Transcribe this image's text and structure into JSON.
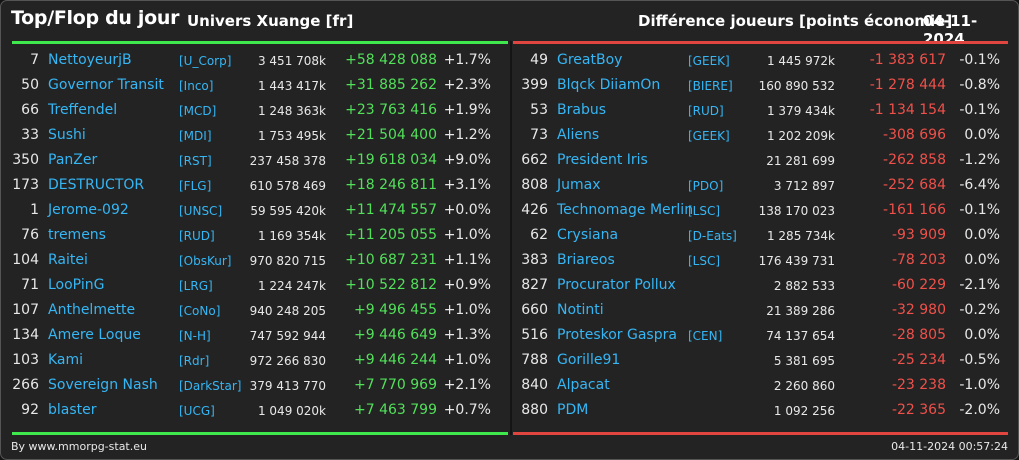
{
  "header": {
    "title": "Top/Flop du jour",
    "universe": "Univers Xuange [fr]",
    "right_title": "Différence joueurs [points économie]",
    "date": "04-11-2024"
  },
  "colors": {
    "positive": "#52e05a",
    "negative": "#f0504a",
    "link": "#35b6f5",
    "top_bar": "#3fe84c",
    "flop_bar": "#e0463f"
  },
  "top": [
    {
      "rank": "7",
      "name": "NettoyeurjB",
      "tag": "[U_Corp]",
      "points": "3 451 708k",
      "diff": "+58 428 088",
      "pct": "+1.7%"
    },
    {
      "rank": "50",
      "name": "Governor Transit",
      "tag": "[Inco]",
      "points": "1 443 417k",
      "diff": "+31 885 262",
      "pct": "+2.3%"
    },
    {
      "rank": "66",
      "name": "Treffendel",
      "tag": "[MCD]",
      "points": "1 248 363k",
      "diff": "+23 763 416",
      "pct": "+1.9%"
    },
    {
      "rank": "33",
      "name": "Sushi",
      "tag": "[MDI]",
      "points": "1 753 495k",
      "diff": "+21 504 400",
      "pct": "+1.2%"
    },
    {
      "rank": "350",
      "name": "PanZer",
      "tag": "[RST]",
      "points": "237 458 378",
      "diff": "+19 618 034",
      "pct": "+9.0%"
    },
    {
      "rank": "173",
      "name": "DESTRUCTOR",
      "tag": "[FLG]",
      "points": "610 578 469",
      "diff": "+18 246 811",
      "pct": "+3.1%"
    },
    {
      "rank": "1",
      "name": "Jerome-092",
      "tag": "[UNSC]",
      "points": "59 595 420k",
      "diff": "+11 474 557",
      "pct": "+0.0%"
    },
    {
      "rank": "76",
      "name": "tremens",
      "tag": "[RUD]",
      "points": "1 169 354k",
      "diff": "+11 205 055",
      "pct": "+1.0%"
    },
    {
      "rank": "104",
      "name": "Raitei",
      "tag": "[ObsKur]",
      "points": "970 820 715",
      "diff": "+10 687 231",
      "pct": "+1.1%"
    },
    {
      "rank": "71",
      "name": "LooPinG",
      "tag": "[LRG]",
      "points": "1 224 247k",
      "diff": "+10 522 812",
      "pct": "+0.9%"
    },
    {
      "rank": "107",
      "name": "Anthelmette",
      "tag": "[CoNo]",
      "points": "940 248 205",
      "diff": "+9 496 455",
      "pct": "+1.0%"
    },
    {
      "rank": "134",
      "name": "Amere Loque",
      "tag": "[N-H]",
      "points": "747 592 944",
      "diff": "+9 446 649",
      "pct": "+1.3%"
    },
    {
      "rank": "103",
      "name": "Kami",
      "tag": "[Rdr]",
      "points": "972 266 830",
      "diff": "+9 446 244",
      "pct": "+1.0%"
    },
    {
      "rank": "266",
      "name": "Sovereign Nash",
      "tag": "[DarkStar]",
      "points": "379 413 770",
      "diff": "+7 770 969",
      "pct": "+2.1%"
    },
    {
      "rank": "92",
      "name": "blaster",
      "tag": "[UCG]",
      "points": "1 049 020k",
      "diff": "+7 463 799",
      "pct": "+0.7%"
    }
  ],
  "flop": [
    {
      "rank": "49",
      "name": "GreatBoy",
      "tag": "[GEEK]",
      "points": "1 445 972k",
      "diff": "-1 383 617",
      "pct": "-0.1%"
    },
    {
      "rank": "399",
      "name": "Blqck DiiamOn",
      "tag": "[BIERE]",
      "points": "160 890 532",
      "diff": "-1 278 444",
      "pct": "-0.8%"
    },
    {
      "rank": "53",
      "name": "Brabus",
      "tag": "[RUD]",
      "points": "1 379 434k",
      "diff": "-1 134 154",
      "pct": "-0.1%"
    },
    {
      "rank": "73",
      "name": "Aliens",
      "tag": "[GEEK]",
      "points": "1 202 209k",
      "diff": "-308 696",
      "pct": "0.0%"
    },
    {
      "rank": "662",
      "name": "President Iris",
      "tag": "",
      "points": "21 281 699",
      "diff": "-262 858",
      "pct": "-1.2%"
    },
    {
      "rank": "808",
      "name": "Jumax",
      "tag": "[PDO]",
      "points": "3 712 897",
      "diff": "-252 684",
      "pct": "-6.4%"
    },
    {
      "rank": "426",
      "name": "Technomage Merlin",
      "tag": "[LSC]",
      "points": "138 170 023",
      "diff": "-161 166",
      "pct": "-0.1%"
    },
    {
      "rank": "62",
      "name": "Crysiana",
      "tag": "[D-Eats]",
      "points": "1 285 734k",
      "diff": "-93 909",
      "pct": "0.0%"
    },
    {
      "rank": "383",
      "name": "Briareos",
      "tag": "[LSC]",
      "points": "176 439 731",
      "diff": "-78 203",
      "pct": "0.0%"
    },
    {
      "rank": "827",
      "name": "Procurator Pollux",
      "tag": "",
      "points": "2 882 533",
      "diff": "-60 229",
      "pct": "-2.1%"
    },
    {
      "rank": "660",
      "name": "Notinti",
      "tag": "",
      "points": "21 389 286",
      "diff": "-32 980",
      "pct": "-0.2%"
    },
    {
      "rank": "516",
      "name": "Proteskor Gaspra",
      "tag": "[CEN]",
      "points": "74 137 654",
      "diff": "-28 805",
      "pct": "0.0%"
    },
    {
      "rank": "788",
      "name": "Gorille91",
      "tag": "",
      "points": "5 381 695",
      "diff": "-25 234",
      "pct": "-0.5%"
    },
    {
      "rank": "840",
      "name": "Alpacat",
      "tag": "",
      "points": "2 260 860",
      "diff": "-23 238",
      "pct": "-1.0%"
    },
    {
      "rank": "880",
      "name": "PDM",
      "tag": "",
      "points": "1 092 256",
      "diff": "-22 365",
      "pct": "-2.0%"
    }
  ],
  "footer": {
    "source": "By www.mmorpg-stat.eu",
    "timestamp": "04-11-2024 00:57:24"
  }
}
